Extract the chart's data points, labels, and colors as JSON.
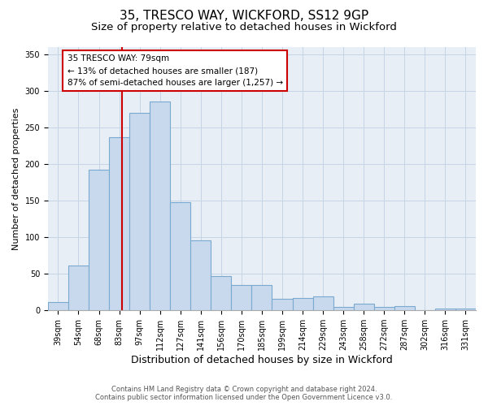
{
  "title": "35, TRESCO WAY, WICKFORD, SS12 9GP",
  "subtitle": "Size of property relative to detached houses in Wickford",
  "xlabel": "Distribution of detached houses by size in Wickford",
  "ylabel": "Number of detached properties",
  "categories": [
    "39sqm",
    "54sqm",
    "68sqm",
    "83sqm",
    "97sqm",
    "112sqm",
    "127sqm",
    "141sqm",
    "156sqm",
    "170sqm",
    "185sqm",
    "199sqm",
    "214sqm",
    "229sqm",
    "243sqm",
    "258sqm",
    "272sqm",
    "287sqm",
    "302sqm",
    "316sqm",
    "331sqm"
  ],
  "values": [
    11,
    61,
    192,
    236,
    270,
    285,
    148,
    96,
    47,
    35,
    35,
    16,
    17,
    19,
    5,
    9,
    5,
    6,
    0,
    3,
    3
  ],
  "bar_color": "#c8d8ed",
  "bar_edge_color": "#7aaad0",
  "vline_color": "#cc0000",
  "vline_x": 3.15,
  "annotation_label": "35 TRESCO WAY: 79sqm",
  "annotation_line1": "← 13% of detached houses are smaller (187)",
  "annotation_line2": "87% of semi-detached houses are larger (1,257) →",
  "ylim_max": 360,
  "yticks": [
    0,
    50,
    100,
    150,
    200,
    250,
    300,
    350
  ],
  "grid_color": "#c5d5e5",
  "plot_bg_color": "#e8eef6",
  "title_fontsize": 11,
  "subtitle_fontsize": 9.5,
  "axis_xlabel_fontsize": 9,
  "axis_ylabel_fontsize": 8,
  "tick_fontsize": 7,
  "footer1": "Contains HM Land Registry data © Crown copyright and database right 2024.",
  "footer2": "Contains public sector information licensed under the Open Government Licence v3.0."
}
